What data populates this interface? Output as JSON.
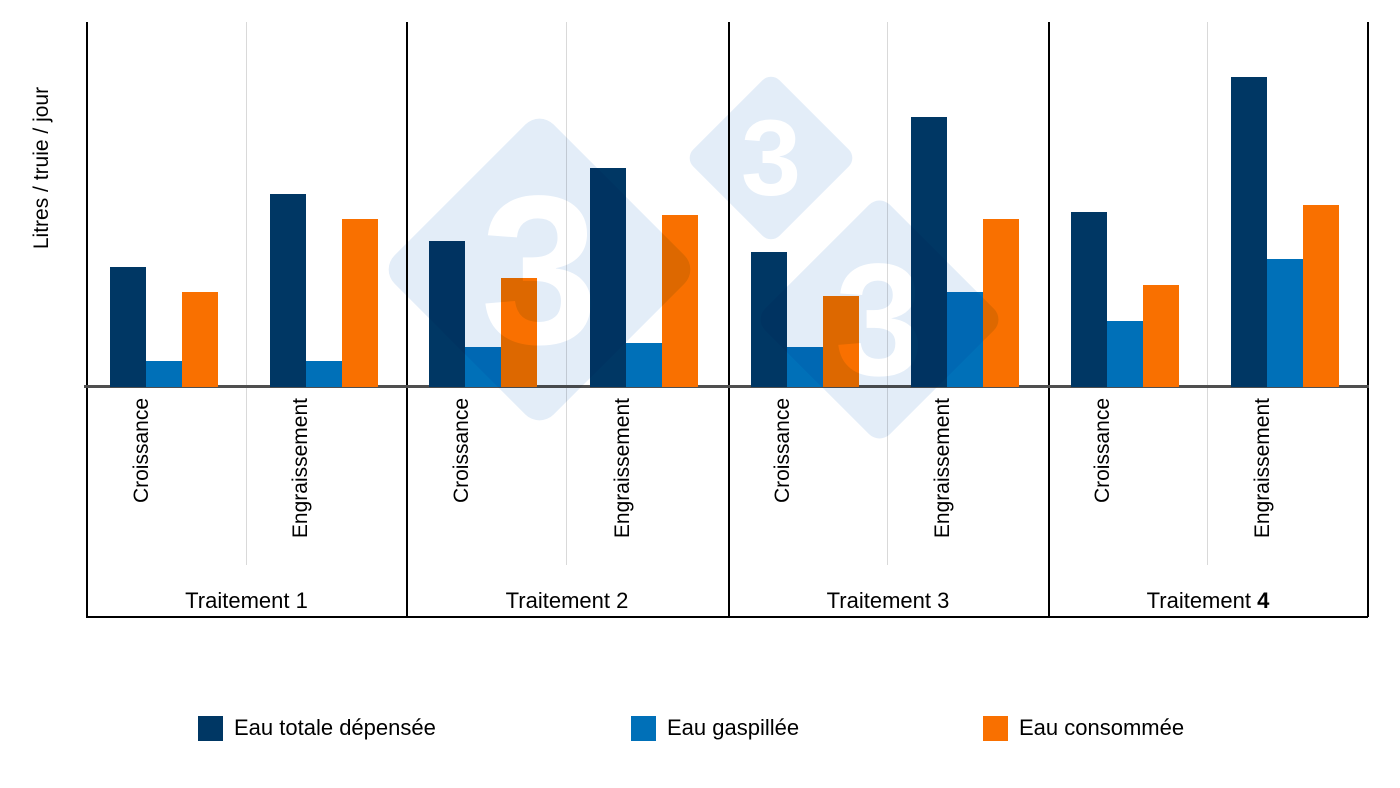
{
  "watermark": {
    "glyph": "3",
    "diamond_color": "#E3EDF8"
  },
  "chart_data": {
    "type": "bar",
    "title": "",
    "ylabel": "Litres / truie / jour",
    "xlabel": "",
    "value_axis": {
      "tick_labels_visible": false,
      "estimated_range": [
        0,
        100
      ]
    },
    "legend_position": "bottom",
    "grid": "off",
    "groups": [
      {
        "label": "Traitement 1"
      },
      {
        "label": "Traitement 2"
      },
      {
        "label": "Traitement 3"
      },
      {
        "label": "Traitement 4",
        "bold_part": "4"
      }
    ],
    "subcategories": [
      "Croissance",
      "Engraissement"
    ],
    "series": [
      {
        "name": "Eau totale dépensée",
        "color": "#003764",
        "values": [
          [
            33,
            53
          ],
          [
            40,
            60
          ],
          [
            37,
            74
          ],
          [
            48,
            85
          ]
        ]
      },
      {
        "name": "Eau gaspillée",
        "color": "#0070B8",
        "values": [
          [
            7,
            7
          ],
          [
            11,
            12
          ],
          [
            11,
            26
          ],
          [
            18,
            35
          ]
        ]
      },
      {
        "name": "Eau consommée",
        "color": "#F97000",
        "values": [
          [
            26,
            46
          ],
          [
            30,
            47
          ],
          [
            25,
            46
          ],
          [
            28,
            50
          ]
        ]
      }
    ],
    "units_note": "relative units — no numeric value-axis labels are shown in the figure"
  }
}
